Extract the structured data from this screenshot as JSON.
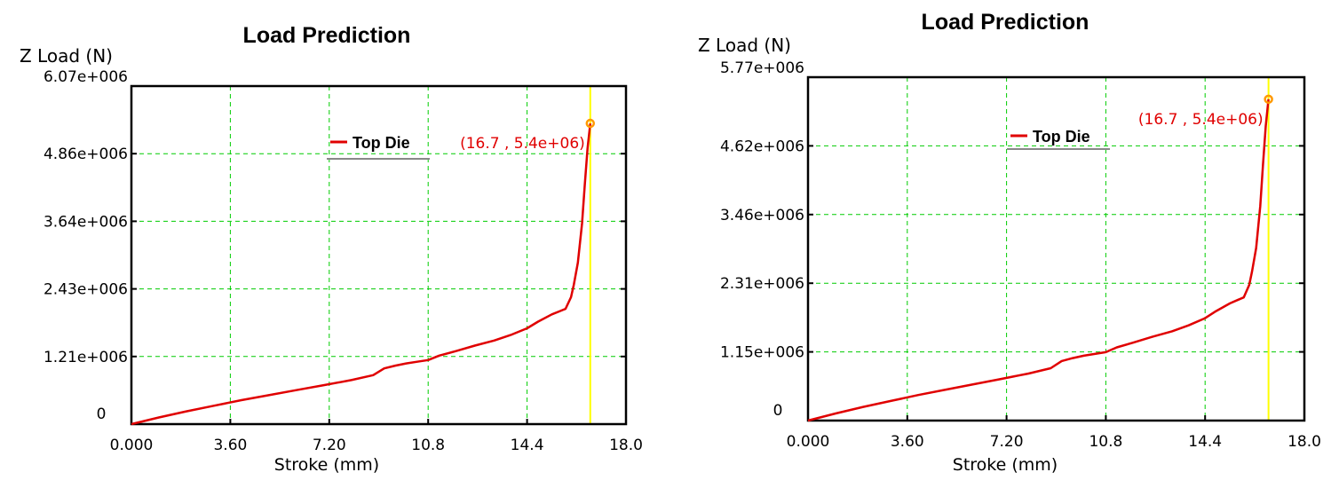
{
  "chart_data": [
    {
      "type": "line",
      "title": "Load Prediction",
      "xlabel": "Stroke (mm)",
      "ylabel": "Z Load (N)",
      "xlim": [
        0,
        18
      ],
      "ylim": [
        0,
        6070000
      ],
      "x_ticks": [
        "0.000",
        "3.60",
        "7.20",
        "10.8",
        "14.4",
        "18.0"
      ],
      "y_ticks": [
        "0",
        "1.21e+006",
        "2.43e+006",
        "3.64e+006",
        "4.86e+006",
        "6.07e+006"
      ],
      "grid": true,
      "legend": "Top Die",
      "legend_position": "top-center",
      "marker": {
        "x": 16.7,
        "y": 5400000,
        "label": "(16.7 , 5.4e+06)"
      },
      "cursor_x": 16.7,
      "colors": {
        "line": "#e00000",
        "grid": "#00cc00",
        "cursor": "#ffff00",
        "marker": "#ff9900"
      },
      "series": [
        {
          "name": "Top Die",
          "x": [
            0,
            1,
            2,
            3,
            4,
            5,
            6,
            7,
            8,
            8.8,
            9.2,
            9.6,
            10,
            10.4,
            10.8,
            11.2,
            11.8,
            12.5,
            13.2,
            13.8,
            14.4,
            14.8,
            15.3,
            15.6,
            15.8,
            16.0,
            16.1,
            16.25,
            16.4,
            16.5,
            16.6,
            16.7
          ],
          "y": [
            0,
            120000,
            230000,
            330000,
            430000,
            520000,
            610000,
            700000,
            790000,
            880000,
            1000000,
            1050000,
            1090000,
            1120000,
            1150000,
            1230000,
            1310000,
            1410000,
            1500000,
            1600000,
            1720000,
            1840000,
            1970000,
            2030000,
            2070000,
            2280000,
            2500000,
            2900000,
            3600000,
            4300000,
            4950000,
            5400000
          ]
        }
      ]
    },
    {
      "type": "line",
      "title": "Load Prediction",
      "xlabel": "Stroke (mm)",
      "ylabel": "Z Load (N)",
      "xlim": [
        0,
        18
      ],
      "ylim": [
        0,
        5770000
      ],
      "x_ticks": [
        "0.000",
        "3.60",
        "7.20",
        "10.8",
        "14.4",
        "18.0"
      ],
      "y_ticks": [
        "0",
        "1.15e+006",
        "2.31e+006",
        "3.46e+006",
        "4.62e+006",
        "5.77e+006"
      ],
      "grid": true,
      "legend": "Top Die",
      "legend_position": "top-center",
      "marker": {
        "x": 16.7,
        "y": 5400000,
        "label": "(16.7 , 5.4e+06)"
      },
      "cursor_x": 16.7,
      "colors": {
        "line": "#e00000",
        "grid": "#00cc00",
        "cursor": "#ffff00",
        "marker": "#ff9900"
      },
      "series": [
        {
          "name": "Top Die",
          "x": [
            0,
            1,
            2,
            3,
            4,
            5,
            6,
            7,
            8,
            8.8,
            9.2,
            9.6,
            10,
            10.4,
            10.8,
            11.2,
            11.8,
            12.5,
            13.2,
            13.8,
            14.4,
            14.8,
            15.3,
            15.6,
            15.8,
            16.0,
            16.1,
            16.25,
            16.4,
            16.5,
            16.6,
            16.7
          ],
          "y": [
            0,
            120000,
            230000,
            330000,
            430000,
            520000,
            610000,
            700000,
            790000,
            880000,
            1000000,
            1050000,
            1090000,
            1120000,
            1150000,
            1230000,
            1310000,
            1410000,
            1500000,
            1600000,
            1720000,
            1840000,
            1970000,
            2030000,
            2070000,
            2280000,
            2500000,
            2900000,
            3600000,
            4300000,
            4950000,
            5400000
          ]
        }
      ]
    }
  ]
}
